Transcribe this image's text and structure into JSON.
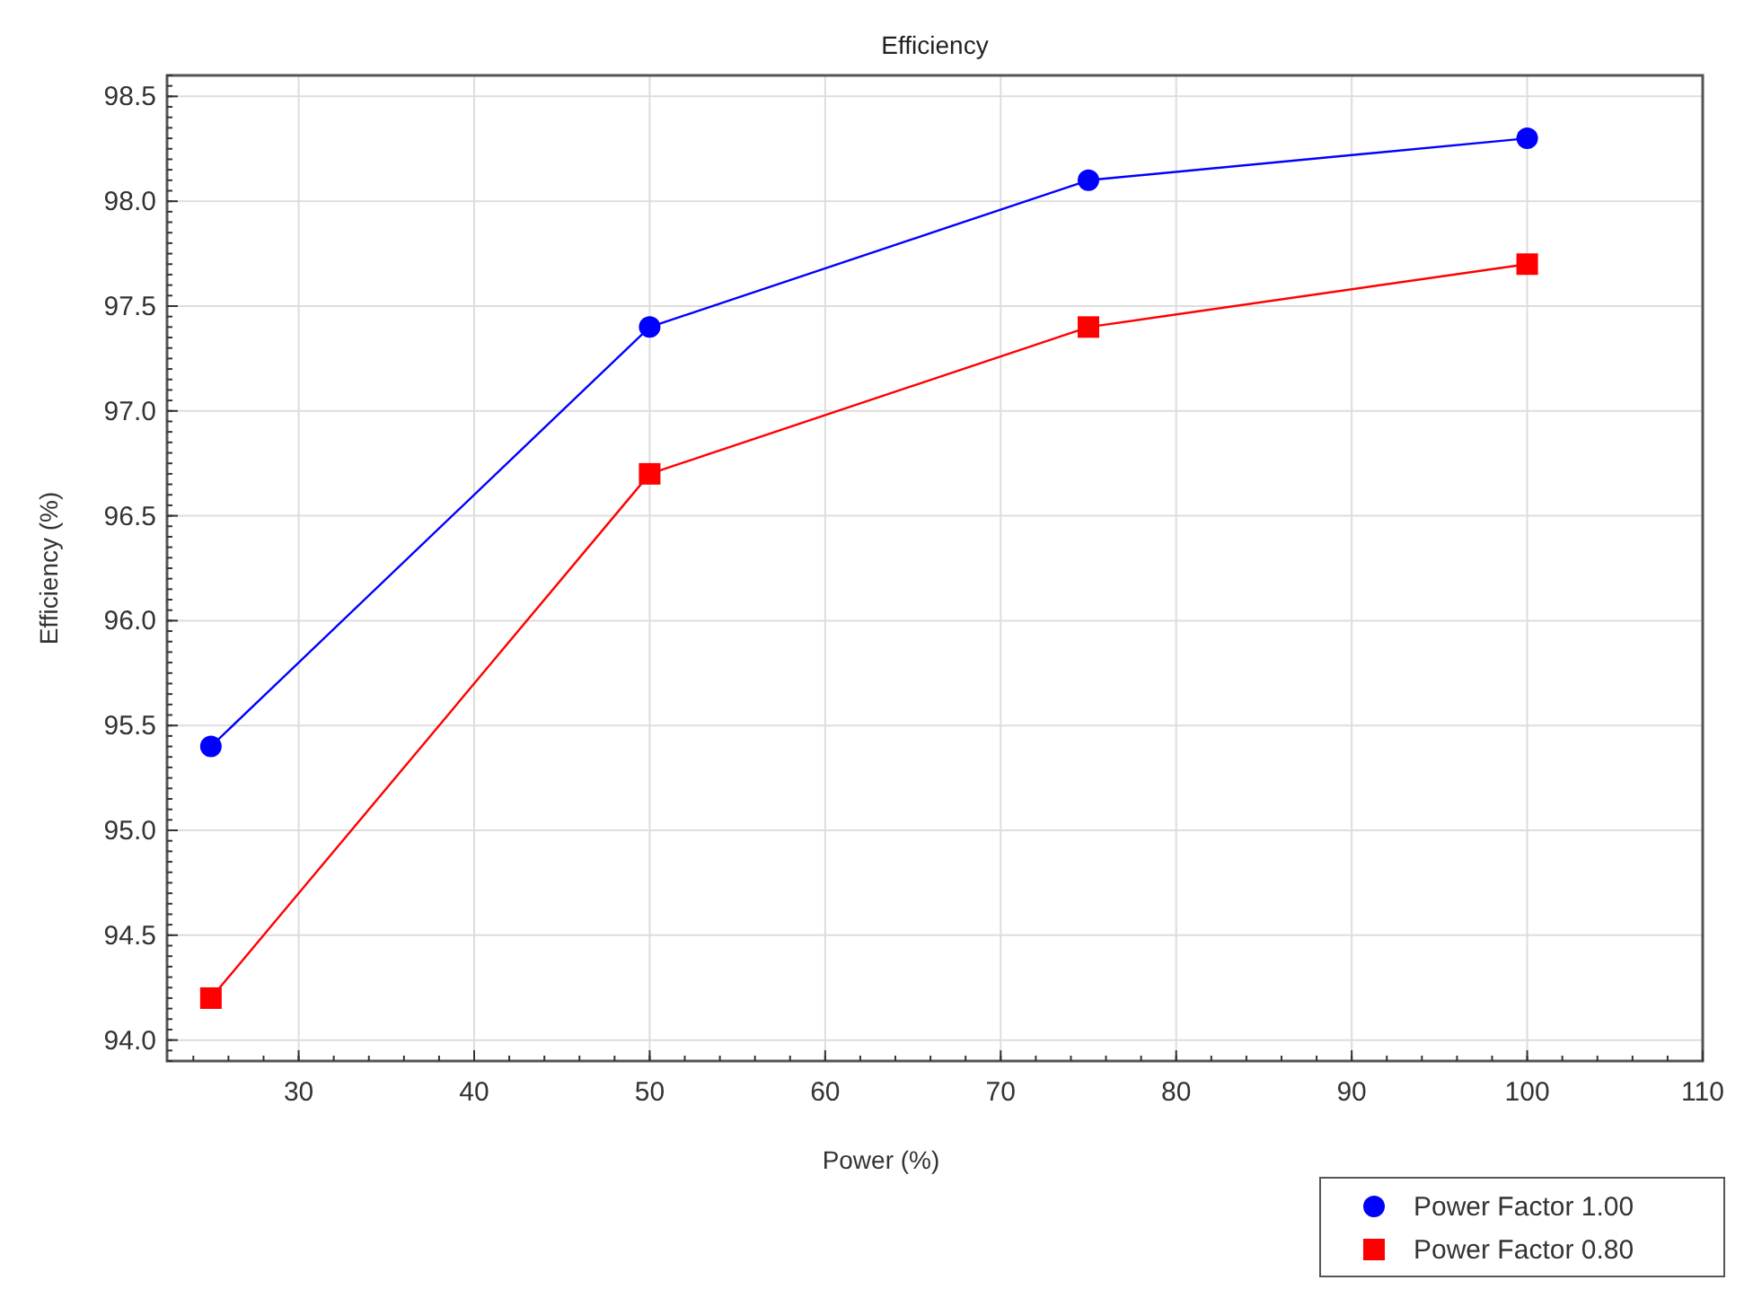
{
  "chart_data": {
    "type": "line",
    "title": "Efficiency",
    "xlabel": "Power (%)",
    "ylabel": "Efficiency (%)",
    "x": [
      25,
      50,
      75,
      100
    ],
    "series": [
      {
        "name": "Power Factor 1.00",
        "color": "#0000ff",
        "marker": "circle",
        "values": [
          95.4,
          97.4,
          98.1,
          98.3
        ]
      },
      {
        "name": "Power Factor 0.80",
        "color": "#ff0000",
        "marker": "square",
        "values": [
          94.2,
          96.7,
          97.4,
          97.7
        ]
      }
    ],
    "xlim": [
      22.5,
      110
    ],
    "xticks": [
      30,
      40,
      50,
      60,
      70,
      80,
      90,
      100,
      110
    ],
    "ylim": [
      93.9,
      98.6
    ],
    "yticks": [
      {
        "value": 94,
        "label": "94.0"
      },
      {
        "value": 94.5,
        "label": "94.5"
      },
      {
        "value": 95,
        "label": "95.0"
      },
      {
        "value": 95.5,
        "label": "95.5"
      },
      {
        "value": 96,
        "label": "96.0"
      },
      {
        "value": 96.5,
        "label": "96.5"
      },
      {
        "value": 97,
        "label": "97.0"
      },
      {
        "value": 97.5,
        "label": "97.5"
      },
      {
        "value": 98,
        "label": "98.0"
      },
      {
        "value": 98.5,
        "label": "98.5"
      }
    ],
    "grid": true,
    "legend": "bottom right"
  }
}
